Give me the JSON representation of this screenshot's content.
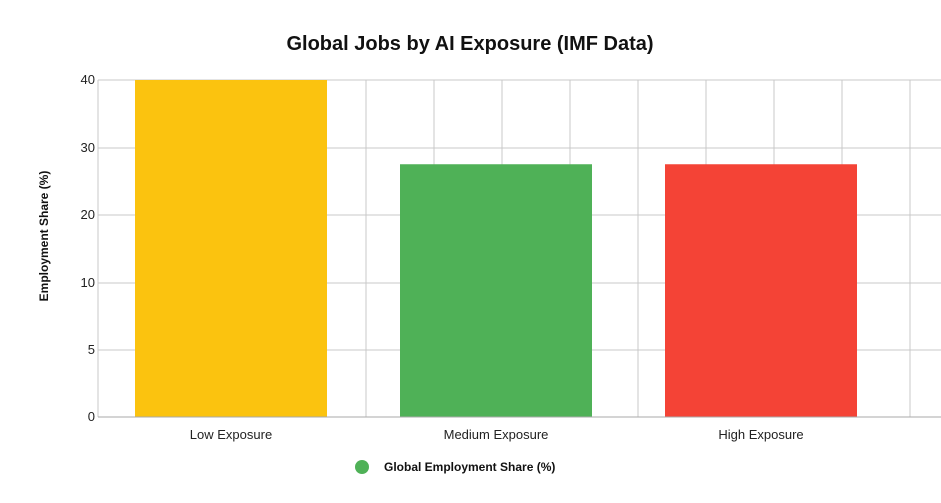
{
  "chart_data": {
    "type": "bar",
    "title": "Global Jobs by AI Exposure (IMF Data)",
    "xlabel": "",
    "ylabel": "Employment Share (%)",
    "categories": [
      "Low Exposure",
      "Medium Exposure",
      "High Exposure"
    ],
    "series": [
      {
        "name": "Global Employment Share (%)",
        "values": [
          40,
          30,
          30
        ],
        "colors": [
          "#FBC30F",
          "#4FB157",
          "#F44336"
        ]
      }
    ],
    "y_ticks": [
      0,
      5,
      10,
      20,
      30,
      40
    ],
    "ylim": [
      0,
      40
    ],
    "grid": true,
    "legend": {
      "position": "bottom",
      "label": "Global Employment Share (%)",
      "marker_color": "#4FB157"
    }
  }
}
